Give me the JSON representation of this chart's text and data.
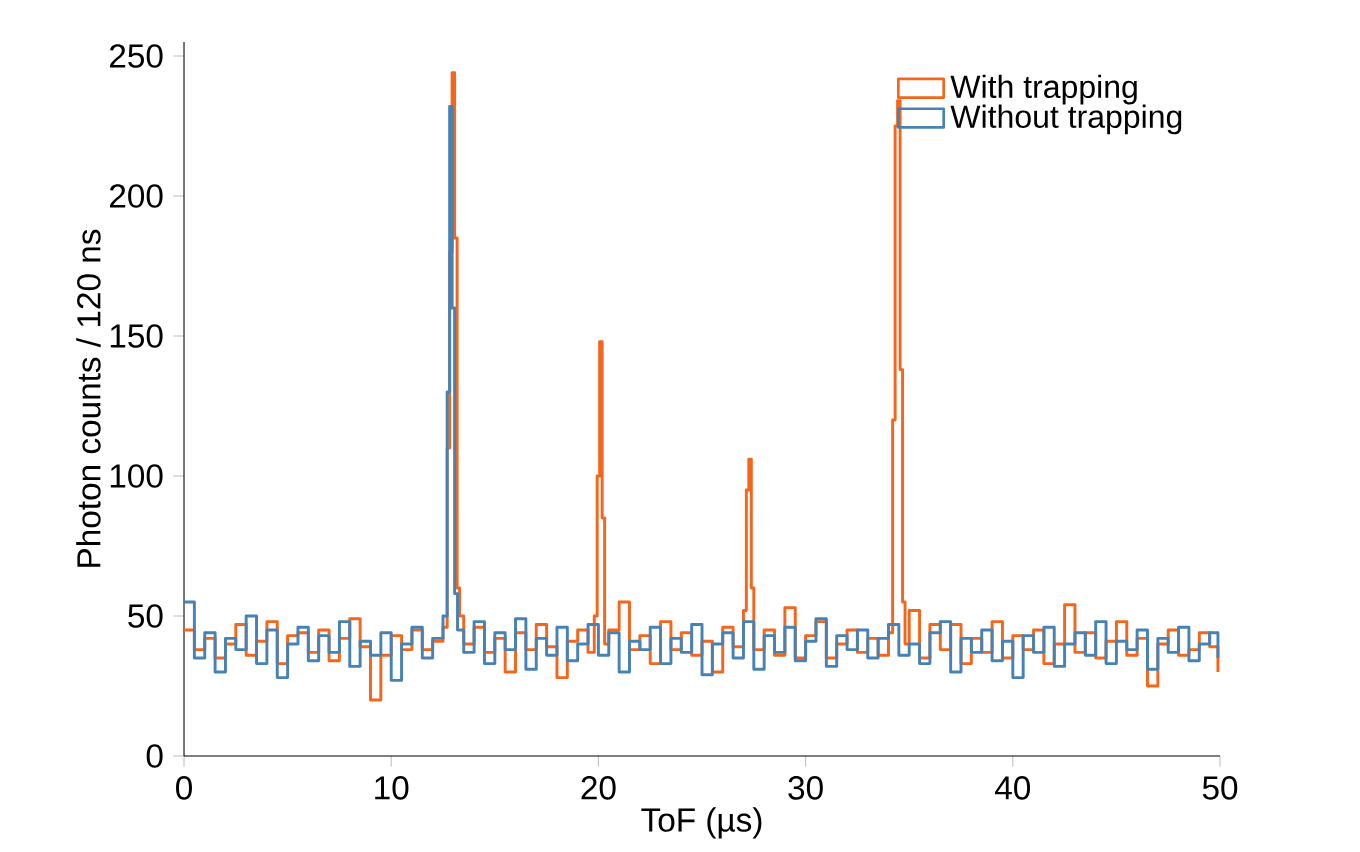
{
  "chart_data": {
    "type": "step",
    "xlabel": "ToF (µs)",
    "ylabel": "Photon counts / 120 ns",
    "xlim": [
      0,
      50
    ],
    "ylim": [
      0,
      255
    ],
    "xticks": [
      0,
      10,
      20,
      30,
      40,
      50
    ],
    "yticks": [
      0,
      50,
      100,
      150,
      200,
      250
    ],
    "grid": false,
    "legend": "top right",
    "marker": "none",
    "line_style": "solid",
    "series": [
      {
        "name": "With trapping",
        "color": "#f4661b",
        "x": [
          0,
          0.5,
          1,
          1.5,
          2,
          2.5,
          3,
          3.5,
          4,
          4.5,
          5,
          5.5,
          6,
          6.5,
          7,
          7.5,
          8,
          8.5,
          9,
          9.5,
          10,
          10.5,
          11,
          11.5,
          12,
          12.5,
          12.7,
          12.82,
          12.94,
          13.06,
          13.18,
          13.3,
          13.5,
          14,
          14.5,
          15,
          15.5,
          16,
          16.5,
          17,
          17.5,
          18,
          18.5,
          19,
          19.5,
          19.8,
          19.94,
          20.06,
          20.18,
          20.3,
          20.5,
          21,
          21.5,
          22,
          22.5,
          23,
          23.5,
          24,
          24.5,
          25,
          25.5,
          26,
          26.5,
          27,
          27.14,
          27.26,
          27.38,
          27.5,
          28,
          28.5,
          29,
          29.5,
          30,
          30.5,
          31,
          31.5,
          32,
          32.5,
          33,
          33.5,
          34,
          34.2,
          34.32,
          34.44,
          34.56,
          34.68,
          34.8,
          35,
          35.5,
          36,
          36.5,
          37,
          37.5,
          38,
          38.5,
          39,
          39.5,
          40,
          40.5,
          41,
          41.5,
          42,
          42.5,
          43,
          43.5,
          44,
          44.5,
          45,
          45.5,
          46,
          46.5,
          47,
          47.5,
          48,
          48.5,
          49,
          49.5,
          49.9
        ],
        "values": [
          45,
          38,
          42,
          35,
          40,
          47,
          36,
          41,
          48,
          33,
          43,
          44,
          37,
          45,
          34,
          42,
          49,
          39,
          20,
          36,
          43,
          38,
          45,
          38,
          41,
          46,
          110,
          180,
          244,
          185,
          60,
          50,
          40,
          46,
          37,
          42,
          30,
          44,
          38,
          47,
          39,
          28,
          41,
          45,
          37,
          50,
          100,
          148,
          85,
          40,
          45,
          55,
          38,
          43,
          33,
          48,
          38,
          44,
          36,
          41,
          30,
          46,
          39,
          52,
          95,
          106,
          60,
          38,
          45,
          36,
          53,
          35,
          43,
          48,
          35,
          40,
          45,
          37,
          42,
          36,
          44,
          120,
          225,
          234,
          138,
          55,
          40,
          52,
          35,
          47,
          38,
          47,
          33,
          42,
          37,
          48,
          35,
          43,
          38,
          45,
          33,
          40,
          54,
          37,
          44,
          35,
          41,
          48,
          36,
          42,
          25,
          40,
          45,
          36,
          38,
          44,
          39,
          30
        ]
      },
      {
        "name": "Without trapping",
        "color": "#4682b4",
        "x": [
          0,
          0.5,
          1,
          1.5,
          2,
          2.5,
          3,
          3.5,
          4,
          4.5,
          5,
          5.5,
          6,
          6.5,
          7,
          7.5,
          8,
          8.5,
          9,
          9.5,
          10,
          10.5,
          11,
          11.5,
          12,
          12.5,
          12.7,
          12.82,
          12.94,
          13.06,
          13.2,
          13.5,
          14,
          14.5,
          15,
          15.5,
          16,
          16.5,
          17,
          17.5,
          18,
          18.5,
          19,
          19.5,
          20,
          20.5,
          21,
          21.5,
          22,
          22.5,
          23,
          23.5,
          24,
          24.5,
          25,
          25.5,
          26,
          26.5,
          27,
          27.5,
          28,
          28.5,
          29,
          29.5,
          30,
          30.5,
          31,
          31.5,
          32,
          32.5,
          33,
          33.5,
          34,
          34.5,
          35,
          35.5,
          36,
          36.5,
          37,
          37.5,
          38,
          38.5,
          39,
          39.5,
          40,
          40.5,
          41,
          41.5,
          42,
          42.5,
          43,
          43.5,
          44,
          44.5,
          45,
          45.5,
          46,
          46.5,
          47,
          47.5,
          48,
          48.5,
          49,
          49.5,
          49.9
        ],
        "values": [
          55,
          35,
          44,
          30,
          42,
          38,
          50,
          33,
          45,
          28,
          40,
          46,
          34,
          43,
          37,
          48,
          32,
          41,
          36,
          44,
          27,
          40,
          46,
          35,
          42,
          50,
          130,
          232,
          160,
          58,
          45,
          37,
          48,
          33,
          44,
          38,
          49,
          31,
          42,
          36,
          46,
          34,
          40,
          47,
          36,
          44,
          30,
          41,
          38,
          46,
          33,
          42,
          37,
          47,
          29,
          40,
          44,
          35,
          48,
          31,
          43,
          37,
          46,
          34,
          41,
          49,
          32,
          43,
          38,
          45,
          35,
          42,
          47,
          36,
          40,
          33,
          44,
          48,
          30,
          42,
          37,
          45,
          34,
          41,
          28,
          43,
          37,
          46,
          32,
          40,
          44,
          36,
          48,
          33,
          41,
          38,
          45,
          31,
          42,
          37,
          46,
          34,
          40,
          44,
          35
        ]
      }
    ]
  }
}
